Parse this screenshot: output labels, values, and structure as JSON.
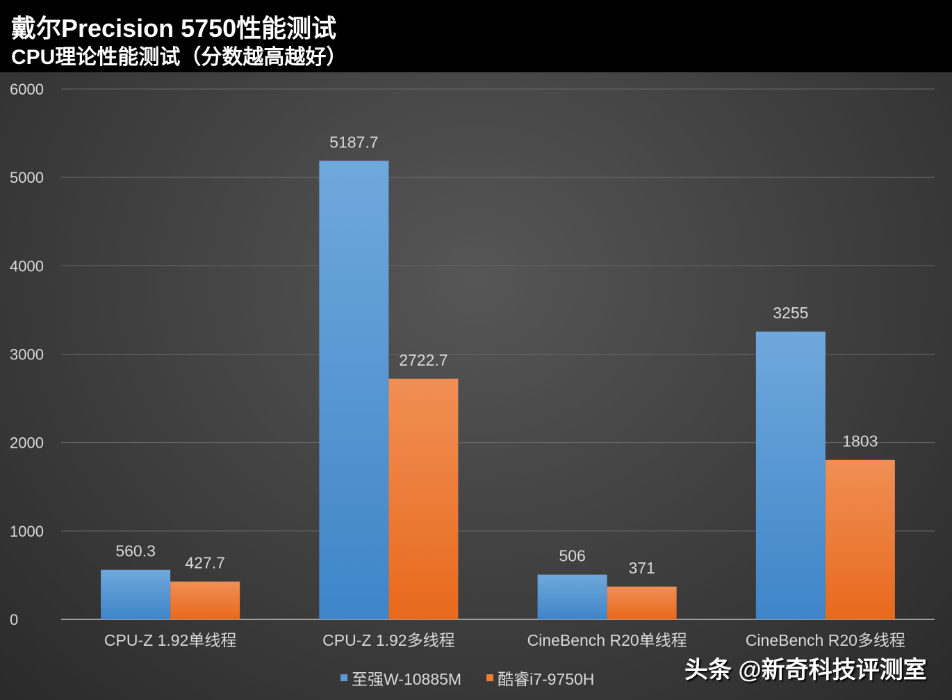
{
  "header": {
    "title": "戴尔Precision 5750性能测试",
    "subtitle": "CPU理论性能测试（分数越高越好）"
  },
  "watermark": "头条 @新奇科技评测室",
  "chart_data": {
    "type": "bar",
    "title": "戴尔Precision 5750性能测试",
    "subtitle": "CPU理论性能测试（分数越高越好）",
    "categories": [
      "CPU-Z 1.92单线程",
      "CPU-Z 1.92多线程",
      "CineBench R20单线程",
      "CineBench R20多线程"
    ],
    "series": [
      {
        "name": "至强W-10885M",
        "color": "#5b9bd5",
        "values": [
          560.3,
          5187.7,
          506,
          3255
        ],
        "labels": [
          "560.3",
          "5187.7",
          "506",
          "3255"
        ]
      },
      {
        "name": "酷睿i7-9750H",
        "color": "#ed7d31",
        "values": [
          427.7,
          2722.7,
          371,
          1803
        ],
        "labels": [
          "427.7",
          "2722.7",
          "371",
          "1803"
        ]
      }
    ],
    "yticks": [
      "0",
      "1000",
      "2000",
      "3000",
      "4000",
      "5000",
      "6000"
    ],
    "ylim": [
      0,
      6000
    ],
    "grid": true,
    "legend": "bottom"
  }
}
